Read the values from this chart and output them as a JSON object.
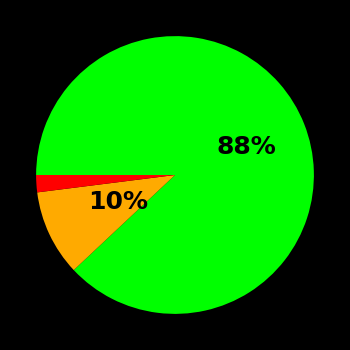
{
  "slices": [
    88,
    10,
    2
  ],
  "colors": [
    "#00ff00",
    "#ffaa00",
    "#ff0000"
  ],
  "labels": [
    "88%",
    "10%",
    ""
  ],
  "background_color": "#000000",
  "text_color": "#000000",
  "startangle": 180,
  "label_fontsize": 18,
  "label_fontweight": "bold",
  "label_radii": [
    0.55,
    0.45,
    0
  ],
  "figsize": [
    3.5,
    3.5
  ],
  "dpi": 100
}
